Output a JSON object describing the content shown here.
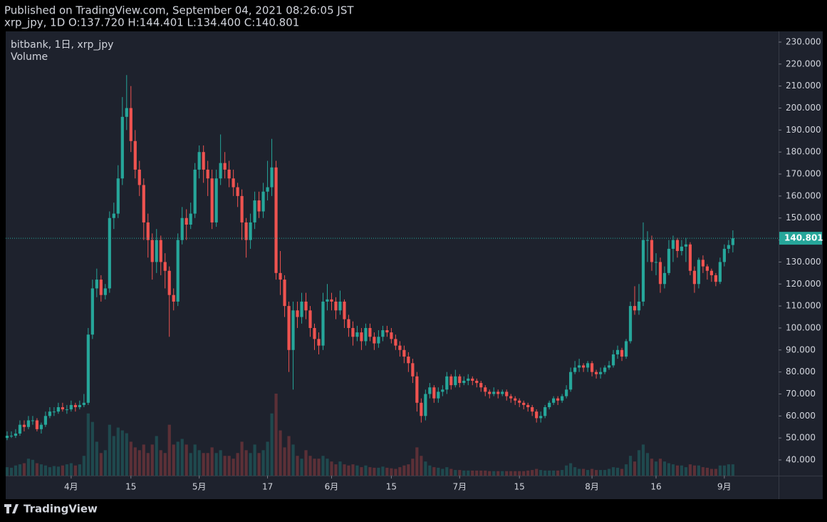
{
  "chart_data": {
    "type": "candlestick",
    "title": "Published on TradingView.com, September 04, 2021 08:26:05 JST",
    "subtitle": "xrp_jpy, 1D O:137.720 H:144.401 L:134.400 C:140.801",
    "series_name": "bitbank, 1日, xrp_jpy",
    "volume_label": "Volume",
    "brand": "TradingView",
    "up_color": "#26a69a",
    "down_color": "#ef5350",
    "xlim": [
      -0.33,
      180.7
    ],
    "xticks": [
      {
        "value": 15,
        "label": "4月"
      },
      {
        "value": 29,
        "label": "15"
      },
      {
        "value": 45,
        "label": "5月"
      },
      {
        "value": 61,
        "label": "17"
      },
      {
        "value": 76,
        "label": "6月"
      },
      {
        "value": 90,
        "label": "15"
      },
      {
        "value": 106,
        "label": "7月"
      },
      {
        "value": 120,
        "label": "15"
      },
      {
        "value": 137,
        "label": "8月"
      },
      {
        "value": 152,
        "label": "16"
      },
      {
        "value": 168,
        "label": "9月"
      }
    ],
    "ylim": [
      32.87,
      234.86
    ],
    "yticks": [
      {
        "value": 40,
        "label": "40.000"
      },
      {
        "value": 50,
        "label": "50.000"
      },
      {
        "value": 60,
        "label": "60.000"
      },
      {
        "value": 70,
        "label": "70.000"
      },
      {
        "value": 80,
        "label": "80.000"
      },
      {
        "value": 90,
        "label": "90.000"
      },
      {
        "value": 100,
        "label": "100.000"
      },
      {
        "value": 110,
        "label": "110.000"
      },
      {
        "value": 120,
        "label": "120.000"
      },
      {
        "value": 130,
        "label": "130.000"
      },
      {
        "value": 140,
        "label": "140.000"
      },
      {
        "value": 150,
        "label": "150.000"
      },
      {
        "value": 160,
        "label": "160.000"
      },
      {
        "value": 170,
        "label": "170.000"
      },
      {
        "value": 180,
        "label": "180.000"
      },
      {
        "value": 190,
        "label": "190.000"
      },
      {
        "value": 200,
        "label": "200.000"
      },
      {
        "value": 210,
        "label": "210.000"
      },
      {
        "value": 220,
        "label": "220.000"
      },
      {
        "value": 230,
        "label": "230.000"
      }
    ],
    "open": [
      50,
      51,
      51,
      52,
      56,
      55,
      58,
      58,
      54,
      56,
      60,
      62,
      62,
      64,
      63,
      63,
      65,
      64,
      65,
      66,
      97,
      118,
      122,
      115,
      118,
      150,
      152,
      168,
      196,
      200,
      185,
      172,
      165,
      148,
      140,
      130,
      140,
      130,
      126,
      115,
      112,
      140,
      150,
      147,
      152,
      172,
      180,
      172,
      168,
      148,
      168,
      175,
      172,
      168,
      164,
      160,
      148,
      140,
      148,
      158,
      153,
      162,
      164,
      173,
      125,
      122,
      110,
      90,
      108,
      105,
      112,
      108,
      100,
      95,
      92,
      112,
      113,
      112,
      108,
      112,
      104,
      100,
      96,
      98,
      94,
      100,
      96,
      93,
      96,
      99,
      98,
      95,
      92,
      90,
      87,
      84,
      78,
      66,
      60,
      70,
      73,
      68,
      71,
      72,
      78,
      74,
      78,
      75,
      76,
      77,
      76,
      75,
      73,
      71,
      70,
      71,
      70,
      71,
      69,
      68,
      67,
      66,
      65,
      64,
      62,
      59,
      60,
      64,
      66,
      68,
      67,
      69,
      72,
      80,
      82,
      83,
      82,
      84,
      80,
      79,
      80,
      82,
      83,
      88,
      90,
      87,
      94,
      110,
      108,
      112,
      140,
      140,
      130,
      130,
      120,
      125,
      136,
      140,
      135,
      137,
      138,
      126,
      120,
      131,
      128,
      126,
      124,
      121,
      130,
      136,
      137.72
    ],
    "high": [
      53,
      53,
      54,
      58,
      58,
      60,
      60,
      59,
      57,
      62,
      64,
      64,
      66,
      66,
      65,
      67,
      66,
      67,
      70,
      100,
      122,
      127,
      124,
      120,
      153,
      157,
      174,
      205,
      215,
      210,
      190,
      176,
      168,
      152,
      143,
      145,
      142,
      134,
      128,
      118,
      143,
      155,
      154,
      157,
      175,
      183,
      183,
      176,
      172,
      172,
      188,
      180,
      176,
      172,
      166,
      163,
      150,
      152,
      162,
      162,
      166,
      176,
      186,
      176,
      135,
      124,
      112,
      112,
      112,
      116,
      116,
      110,
      102,
      98,
      116,
      120,
      116,
      114,
      117,
      113,
      106,
      103,
      101,
      100,
      102,
      102,
      98,
      99,
      101,
      101,
      100,
      97,
      94,
      92,
      89,
      86,
      80,
      68,
      72,
      75,
      74,
      73,
      74,
      80,
      79,
      81,
      79,
      78,
      79,
      78,
      77,
      76,
      74,
      72,
      73,
      72,
      72,
      72,
      70,
      69,
      68,
      67,
      66,
      65,
      63,
      62,
      65,
      67,
      69,
      69,
      70,
      74,
      82,
      85,
      86,
      84,
      85,
      85,
      81,
      82,
      83,
      85,
      90,
      92,
      91,
      95,
      112,
      119,
      120,
      148,
      144,
      142,
      134,
      132,
      128,
      140,
      142,
      141,
      140,
      141,
      139,
      128,
      132,
      133,
      129,
      127,
      125,
      132,
      138,
      140,
      144.401
    ],
    "low": [
      49,
      50,
      50,
      51,
      53,
      54,
      56,
      53,
      52,
      55,
      59,
      60,
      61,
      62,
      61,
      62,
      62,
      63,
      64,
      65,
      95,
      114,
      112,
      113,
      116,
      145,
      150,
      165,
      190,
      180,
      168,
      160,
      140,
      132,
      122,
      125,
      124,
      118,
      96,
      108,
      110,
      138,
      140,
      145,
      150,
      168,
      166,
      160,
      145,
      146,
      165,
      168,
      164,
      160,
      155,
      140,
      132,
      136,
      145,
      150,
      150,
      158,
      160,
      122,
      115,
      105,
      80,
      72,
      100,
      102,
      104,
      96,
      90,
      88,
      90,
      108,
      108,
      104,
      106,
      100,
      96,
      92,
      94,
      90,
      92,
      94,
      90,
      91,
      94,
      96,
      93,
      90,
      87,
      84,
      80,
      75,
      62,
      57,
      58,
      68,
      66,
      66,
      69,
      70,
      72,
      73,
      73,
      74,
      74,
      74,
      73,
      71,
      69,
      68,
      69,
      68,
      69,
      67,
      66,
      65,
      64,
      63,
      62,
      60,
      57,
      57,
      59,
      63,
      65,
      65,
      66,
      68,
      71,
      79,
      80,
      80,
      80,
      78,
      77,
      77,
      79,
      81,
      82,
      86,
      85,
      86,
      93,
      106,
      106,
      110,
      130,
      126,
      124,
      116,
      118,
      124,
      130,
      132,
      133,
      130,
      124,
      116,
      118,
      125,
      122,
      121,
      119,
      120,
      128,
      134,
      134.4
    ],
    "close": [
      51,
      51,
      52,
      56,
      55,
      58,
      58,
      54,
      56,
      60,
      62,
      62,
      64,
      63,
      63,
      65,
      64,
      65,
      66,
      97,
      118,
      122,
      115,
      118,
      150,
      152,
      168,
      196,
      200,
      185,
      172,
      165,
      148,
      140,
      130,
      140,
      130,
      126,
      115,
      112,
      140,
      150,
      147,
      152,
      172,
      180,
      172,
      168,
      148,
      168,
      175,
      172,
      168,
      164,
      160,
      148,
      140,
      148,
      158,
      153,
      162,
      164,
      173,
      125,
      122,
      110,
      90,
      108,
      105,
      112,
      108,
      100,
      95,
      92,
      112,
      113,
      112,
      108,
      112,
      104,
      100,
      96,
      98,
      94,
      100,
      96,
      93,
      96,
      99,
      98,
      95,
      92,
      90,
      87,
      84,
      78,
      66,
      60,
      70,
      73,
      68,
      71,
      72,
      78,
      74,
      78,
      75,
      76,
      77,
      76,
      75,
      73,
      71,
      70,
      71,
      70,
      71,
      69,
      68,
      67,
      66,
      65,
      64,
      62,
      59,
      60,
      64,
      66,
      68,
      67,
      69,
      72,
      80,
      82,
      83,
      82,
      84,
      80,
      79,
      80,
      82,
      83,
      88,
      90,
      87,
      94,
      110,
      108,
      112,
      140,
      140,
      130,
      130,
      120,
      125,
      136,
      140,
      135,
      137,
      138,
      126,
      120,
      131,
      128,
      126,
      124,
      121,
      130,
      136,
      137.72,
      140.801
    ],
    "volume": [
      15,
      14,
      18,
      20,
      22,
      30,
      28,
      22,
      20,
      18,
      15,
      17,
      16,
      18,
      20,
      22,
      18,
      20,
      35,
      110,
      95,
      60,
      40,
      45,
      90,
      70,
      85,
      80,
      75,
      60,
      50,
      45,
      55,
      40,
      55,
      70,
      45,
      40,
      90,
      55,
      60,
      65,
      55,
      40,
      55,
      45,
      40,
      40,
      50,
      40,
      45,
      35,
      35,
      30,
      40,
      60,
      45,
      40,
      55,
      40,
      45,
      60,
      110,
      145,
      80,
      50,
      70,
      55,
      35,
      30,
      45,
      35,
      30,
      30,
      35,
      30,
      25,
      20,
      25,
      20,
      18,
      20,
      18,
      15,
      18,
      15,
      14,
      14,
      16,
      14,
      13,
      12,
      15,
      18,
      20,
      30,
      50,
      35,
      25,
      18,
      15,
      14,
      12,
      15,
      12,
      10,
      10,
      9,
      9,
      9,
      9,
      9,
      9,
      8,
      8,
      8,
      8,
      8,
      8,
      8,
      8,
      8,
      9,
      10,
      12,
      10,
      9,
      9,
      9,
      9,
      10,
      18,
      22,
      15,
      12,
      12,
      10,
      12,
      10,
      10,
      10,
      12,
      15,
      14,
      12,
      20,
      35,
      25,
      45,
      55,
      40,
      30,
      25,
      30,
      25,
      22,
      20,
      18,
      18,
      15,
      20,
      18,
      18,
      15,
      14,
      12,
      12,
      18,
      18,
      20,
      20
    ]
  }
}
